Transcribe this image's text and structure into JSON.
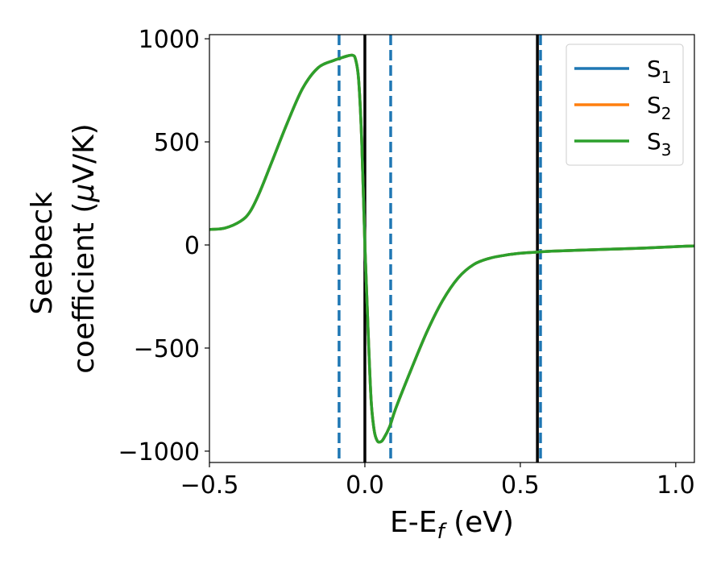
{
  "chart_data": {
    "type": "line",
    "title": "",
    "xlabel": {
      "base": "E-E",
      "sub": "f",
      "unit": " (eV)"
    },
    "ylabel": {
      "line1": "Seebeck",
      "line2": "coefficient  (",
      "mu": "μ",
      "unit": "V/K)"
    },
    "xlim": [
      -0.5,
      1.06
    ],
    "ylim": [
      -1055,
      1020
    ],
    "xticks": [
      {
        "value": -0.5,
        "label": "−0.5"
      },
      {
        "value": 0.0,
        "label": "0.0"
      },
      {
        "value": 0.5,
        "label": "0.5"
      },
      {
        "value": 1.0,
        "label": "1.0"
      }
    ],
    "yticks": [
      {
        "value": 1000,
        "label": "1000"
      },
      {
        "value": 500,
        "label": "500"
      },
      {
        "value": 0,
        "label": "0"
      },
      {
        "value": -500,
        "label": "−500"
      },
      {
        "value": -1000,
        "label": "−1000"
      }
    ],
    "grid": false,
    "legend_position": "top-right",
    "x": [
      -0.5,
      -0.45,
      -0.4,
      -0.37,
      -0.34,
      -0.3,
      -0.25,
      -0.2,
      -0.15,
      -0.1,
      -0.08,
      -0.06,
      -0.04,
      -0.03,
      -0.02,
      -0.01,
      0.0,
      0.01,
      0.02,
      0.03,
      0.04,
      0.05,
      0.06,
      0.08,
      0.1,
      0.15,
      0.2,
      0.25,
      0.3,
      0.35,
      0.4,
      0.45,
      0.5,
      0.55,
      0.6,
      0.7,
      0.8,
      0.9,
      1.0,
      1.06
    ],
    "series": [
      {
        "name": "S",
        "sub": "1",
        "color": "#1f77b4",
        "values": [
          75,
          82,
          115,
          160,
          250,
          400,
          590,
          760,
          860,
          895,
          905,
          915,
          920,
          900,
          800,
          500,
          0,
          -400,
          -750,
          -900,
          -950,
          -955,
          -940,
          -880,
          -790,
          -600,
          -420,
          -270,
          -160,
          -95,
          -65,
          -50,
          -40,
          -35,
          -30,
          -25,
          -20,
          -15,
          -8,
          -5
        ]
      },
      {
        "name": "S",
        "sub": "2",
        "color": "#ff7f0e",
        "values": [
          75,
          82,
          115,
          160,
          250,
          400,
          590,
          760,
          860,
          895,
          905,
          915,
          920,
          900,
          800,
          500,
          0,
          -400,
          -750,
          -900,
          -950,
          -955,
          -940,
          -880,
          -790,
          -600,
          -420,
          -270,
          -160,
          -95,
          -65,
          -50,
          -40,
          -35,
          -30,
          -25,
          -20,
          -15,
          -8,
          -5
        ]
      },
      {
        "name": "S",
        "sub": "3",
        "color": "#2ca02c",
        "values": [
          75,
          82,
          115,
          160,
          250,
          400,
          590,
          760,
          860,
          895,
          905,
          915,
          920,
          900,
          800,
          500,
          0,
          -400,
          -750,
          -900,
          -950,
          -955,
          -940,
          -880,
          -790,
          -600,
          -420,
          -270,
          -160,
          -95,
          -65,
          -50,
          -40,
          -35,
          -30,
          -25,
          -20,
          -15,
          -8,
          -5
        ]
      }
    ],
    "vertical_lines": [
      {
        "x": -0.083,
        "style": "dashed",
        "color": "#1f77b4"
      },
      {
        "x": 0.083,
        "style": "dashed",
        "color": "#1f77b4"
      },
      {
        "x": 0.565,
        "style": "dashed",
        "color": "#1f77b4"
      },
      {
        "x": 0.0,
        "style": "solid",
        "color": "#000000"
      },
      {
        "x": 0.555,
        "style": "solid",
        "color": "#000000"
      }
    ]
  }
}
